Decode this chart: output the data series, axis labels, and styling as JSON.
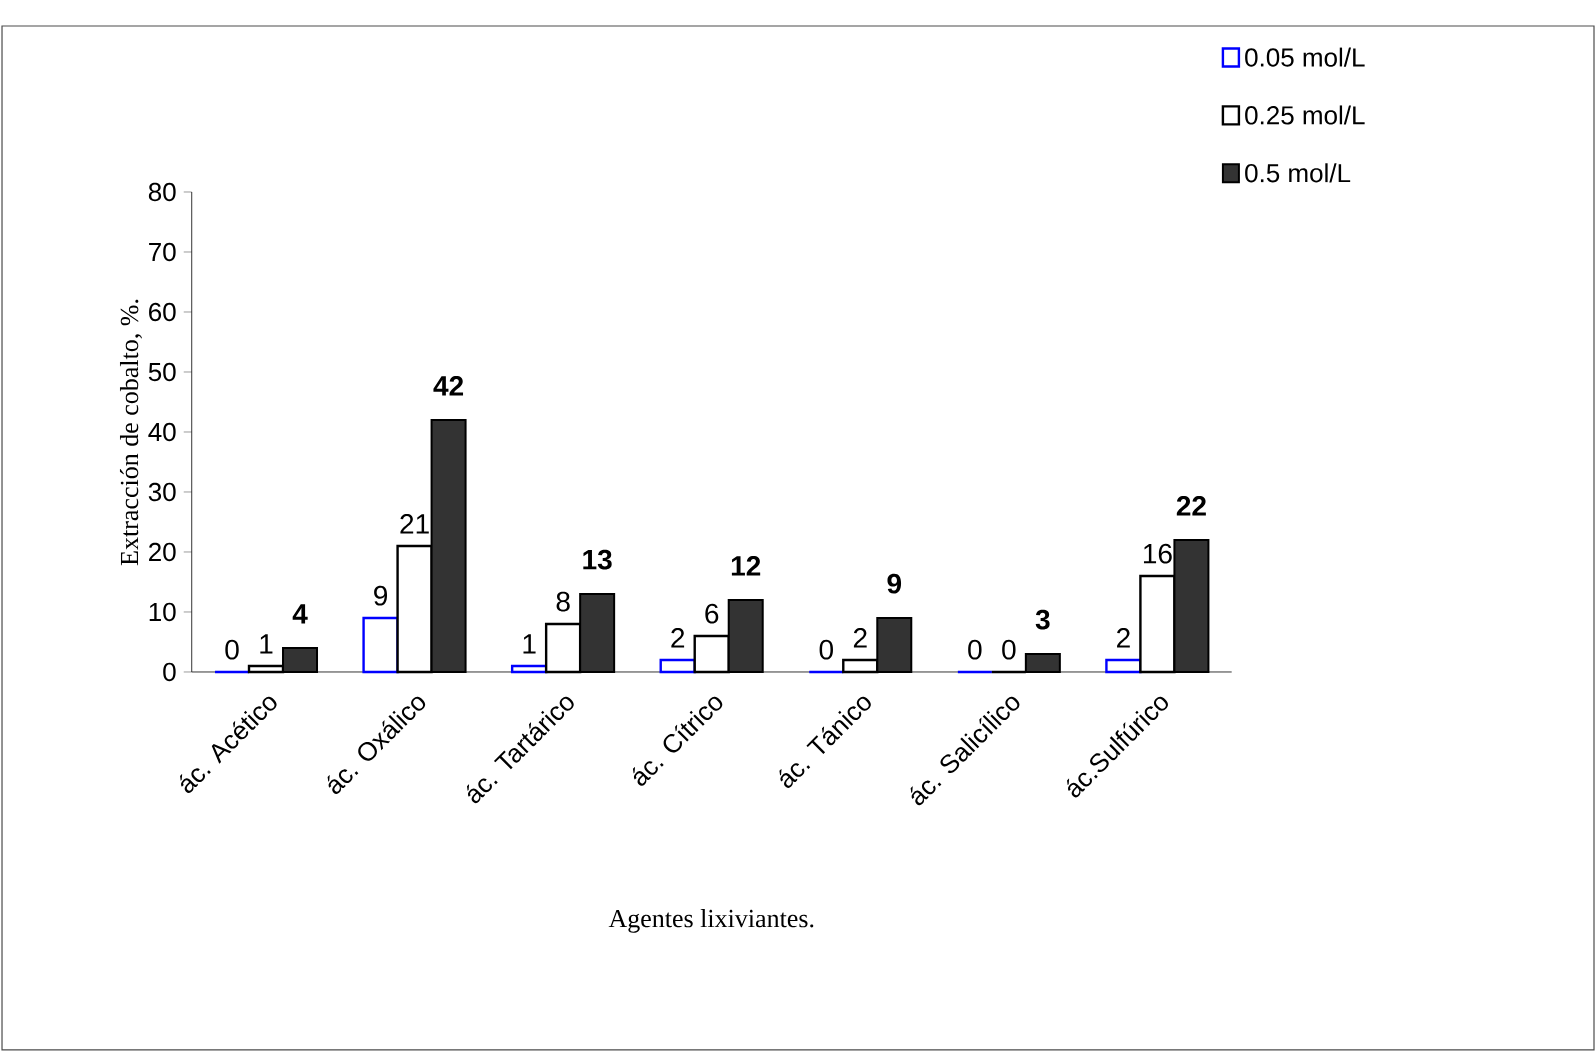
{
  "chart_data": {
    "type": "bar",
    "xlabel": "Agentes lixiviantes.",
    "ylabel": "Extracción de cobalto, %.",
    "categories": [
      "ác. Acético",
      "ác. Oxálico",
      "ác. Tartárico",
      "ác. Cítrico",
      "ác. Tánico",
      "ác. Salicílico",
      "ác.Sulfúrico"
    ],
    "series": [
      {
        "name": "0.05 mol/L",
        "color": "#0000ff",
        "values": [
          0,
          9,
          1,
          2,
          0,
          0,
          2
        ],
        "value_labels": [
          "0",
          "9",
          "1",
          "2",
          "0",
          "0",
          "2"
        ]
      },
      {
        "name": "0.25 mol/L",
        "color": "#000000",
        "values": [
          1,
          21,
          8,
          6,
          2,
          0,
          16
        ],
        "value_labels": [
          "1",
          "21",
          "8",
          "6",
          "2",
          "0",
          "16"
        ]
      },
      {
        "name": "0.5 mol/L",
        "color": "#333333",
        "values": [
          4,
          42,
          13,
          12,
          9,
          3,
          22
        ],
        "value_labels": [
          "4",
          "42",
          "13",
          "12",
          "9",
          "3",
          "22"
        ]
      }
    ],
    "ylim": [
      0,
      80
    ],
    "yticks": [
      0,
      10,
      20,
      30,
      40,
      50,
      60,
      70,
      80
    ],
    "legend": "top right",
    "grid": false
  }
}
